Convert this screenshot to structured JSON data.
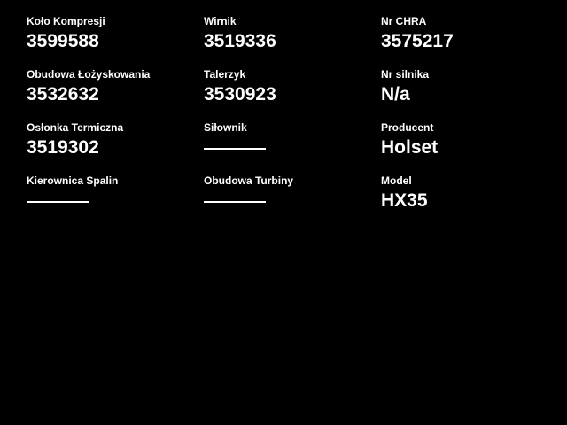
{
  "theme": {
    "background": "#000000",
    "text_color": "#ffffff"
  },
  "fields": [
    {
      "label": "Koło Kompresji",
      "value": "3599588",
      "empty": false
    },
    {
      "label": "Wirnik",
      "value": "3519336",
      "empty": false
    },
    {
      "label": "Nr CHRA",
      "value": "3575217",
      "empty": false
    },
    {
      "label": "Obudowa Łożyskowania",
      "value": "3532632",
      "empty": false
    },
    {
      "label": "Talerzyk",
      "value": "3530923",
      "empty": false
    },
    {
      "label": "Nr silnika",
      "value": "N/a",
      "empty": false
    },
    {
      "label": "Osłonka Termiczna",
      "value": "3519302",
      "empty": false
    },
    {
      "label": "Siłownik",
      "value": "",
      "empty": true
    },
    {
      "label": "Producent",
      "value": "Holset",
      "empty": false
    },
    {
      "label": "Kierownica Spalin",
      "value": "",
      "empty": true
    },
    {
      "label": "Obudowa Turbiny",
      "value": "",
      "empty": true
    },
    {
      "label": "Model",
      "value": "HX35",
      "empty": false
    }
  ]
}
